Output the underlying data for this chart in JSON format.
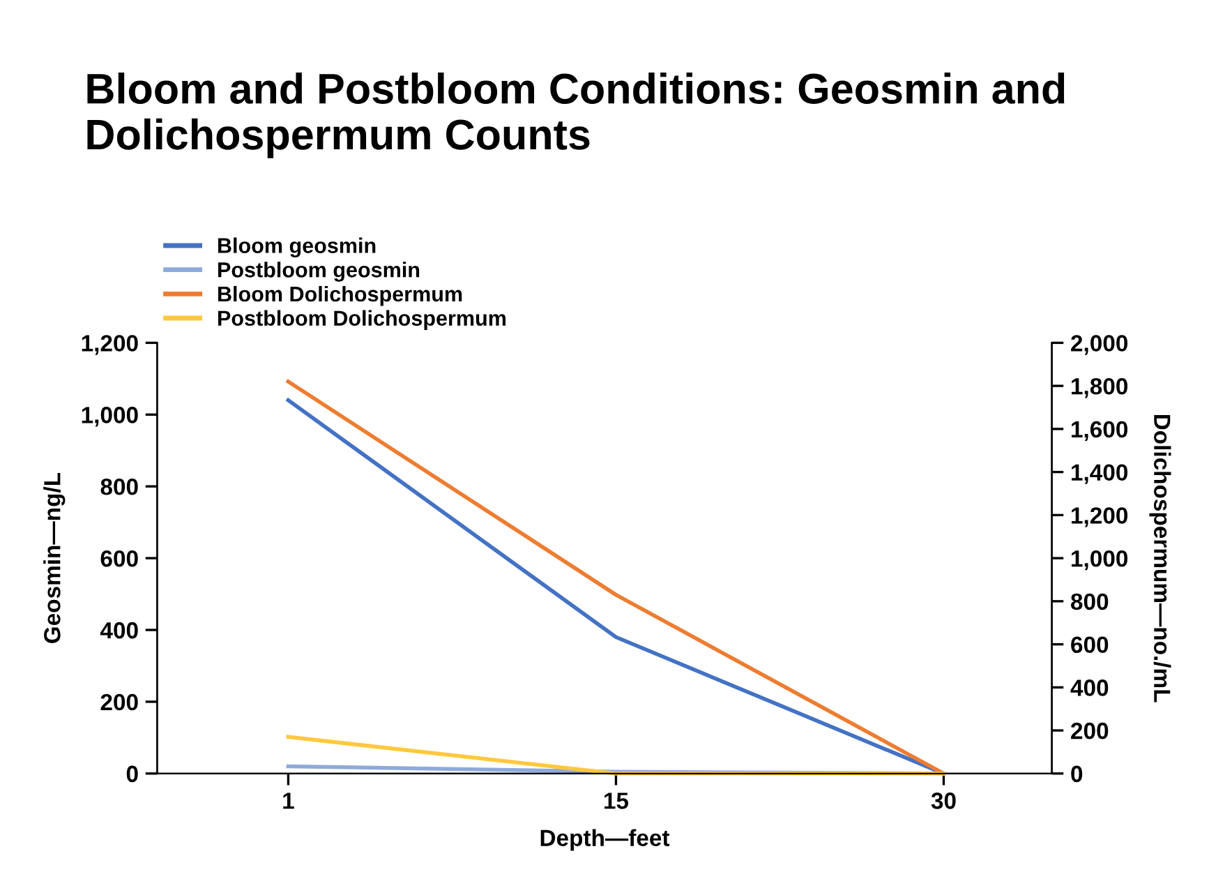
{
  "chart_data": {
    "type": "line",
    "title": "Bloom and Postbloom Conditions: Geosmin and Dolichospermum Counts",
    "xlabel": "Depth—feet",
    "ylabel": "Geosmin—ng/L",
    "y2label": "Dolichospermum—no./mL",
    "categories": [
      "1",
      "15",
      "30"
    ],
    "series": [
      {
        "name": "Bloom geosmin",
        "color": "#4472c4",
        "values": [
          1040,
          380,
          0
        ]
      },
      {
        "name": "Postbloom geosmin",
        "color": "#8eaadb",
        "values": [
          20,
          5,
          0
        ]
      },
      {
        "name": "Bloom Dolichospermum",
        "color": "#ed7d31",
        "values": [
          1820,
          830,
          0
        ],
        "axis": "y2"
      },
      {
        "name": "Postbloom Dolichospermum",
        "color": "#ffc83d",
        "values": [
          170,
          0,
          0
        ],
        "axis": "y2"
      }
    ],
    "ylim": [
      0,
      1200
    ],
    "yticks": [
      0,
      {
        "value": 200,
        "label": "200"
      },
      {
        "value": 400,
        "label": "400"
      },
      {
        "value": 600,
        "label": "600"
      },
      {
        "value": 800,
        "label": "800"
      },
      {
        "value": 1000,
        "label": "1,000"
      },
      {
        "value": 1200,
        "label": "1,200"
      }
    ],
    "y2lim": [
      0,
      2000
    ],
    "y2ticks": [
      0,
      200,
      400,
      600,
      800,
      {
        "value": 1000,
        "label": "1,000"
      },
      {
        "value": 1200,
        "label": "1,200"
      },
      {
        "value": 1400,
        "label": "1,400"
      },
      {
        "value": 1600,
        "label": "1,600"
      },
      {
        "value": 1800,
        "label": "1,800"
      },
      {
        "value": 2000,
        "label": "2,000"
      }
    ],
    "grid": false,
    "legend": "top left",
    "marker": "none",
    "line_style": "solid"
  }
}
